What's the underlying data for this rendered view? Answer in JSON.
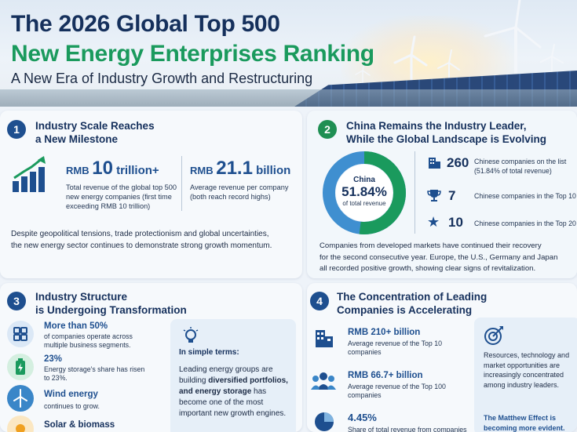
{
  "header": {
    "title_line1": "The 2026 Global Top 500",
    "title_line2": "New Energy Enterprises Ranking",
    "subtitle": "A New Era of Industry Growth and Restructuring"
  },
  "colors": {
    "navy": "#15305c",
    "blue": "#1e4f8f",
    "green": "#1a9a5d",
    "teal": "#2bb0a0"
  },
  "section1": {
    "number": "1",
    "title_line1": "Industry Scale Reaches",
    "title_line2": "a New Milestone",
    "icon": "bar-chart-growth-icon",
    "stat1": {
      "prefix": "RMB ",
      "value": "10",
      "suffix": " trillion+",
      "desc": [
        "Total revenue of the global top 500",
        "new energy companies (first time",
        "exceeding RMB 10 trillion)"
      ]
    },
    "stat2": {
      "prefix": "RMB ",
      "value": "21.1",
      "suffix": " billion",
      "desc": [
        "Average revenue per company",
        "(both reach record highs)"
      ]
    },
    "paragraph": [
      "Despite geopolitical tensions, trade protectionism and global uncertainties,",
      "the new energy sector continues to demonstrate strong growth momentum."
    ]
  },
  "section2": {
    "number": "2",
    "title_line1": "China Remains the Industry Leader,",
    "title_line2": "While the Global Landscape is Evolving",
    "donut": {
      "label": "China",
      "value": "51.84%",
      "caption": "of total revenue",
      "share": 51.84
    },
    "stats": [
      {
        "icon": "building-icon",
        "value": "260",
        "desc": [
          "Chinese companies on the list",
          "(51.84% of total revenue)"
        ]
      },
      {
        "icon": "trophy-icon",
        "value": "7",
        "desc": [
          "Chinese companies in the Top 10"
        ]
      },
      {
        "icon": "star-icon",
        "value": "10",
        "desc": [
          "Chinese companies in the Top 20"
        ]
      }
    ],
    "paragraph": [
      "Companies from developed markets have continued their recovery",
      "for the second consecutive year. Europe, the U.S., Germany and Japan",
      "all recorded positive growth, showing clear signs of revitalization."
    ]
  },
  "section3": {
    "number": "3",
    "title_line1": "Industry Structure",
    "title_line2": "is Undergoing Transformation",
    "rows": [
      {
        "icon": "grid-icon",
        "title": "More than 50%",
        "desc": [
          "of companies operate across",
          "multiple business segments."
        ]
      },
      {
        "icon": "battery-icon",
        "title": "23%",
        "desc": [
          "Energy storage's share has risen",
          "to 23%."
        ]
      },
      {
        "icon": "wind-turbine-icon",
        "title": "Wind energy",
        "desc": [
          "continues to grow."
        ]
      },
      {
        "icon": "sun-icon",
        "title": "Solar & biomass",
        "desc": []
      }
    ],
    "simple": {
      "icon": "lightbulb-icon",
      "heading": "In simple terms:",
      "body_pre": "Leading energy groups are building ",
      "body_bold": "diversified portfolios, and energy storage",
      "body_post": " has become one of the most important new growth engines."
    }
  },
  "section4": {
    "number": "4",
    "title_line1": "The Concentration of Leading",
    "title_line2": "Companies is Accelerating",
    "rows": [
      {
        "icon": "city-buildings-icon",
        "title": "RMB 210+ billion",
        "desc": [
          "Average revenue of the Top 10",
          "companies"
        ]
      },
      {
        "icon": "people-group-icon",
        "title": "RMB 66.7+ billion",
        "desc": [
          "Average revenue of the Top 100",
          "companies"
        ]
      },
      {
        "icon": "pie-chart-icon",
        "title": "4.45%",
        "desc": [
          "Share of total revenue from companies"
        ]
      }
    ],
    "side": {
      "icon": "target-icon",
      "text": "Resources, technology and market opportunities are increasingly concentrated among industry leaders.",
      "strong": "The Matthew Effect is becoming more evident."
    }
  }
}
